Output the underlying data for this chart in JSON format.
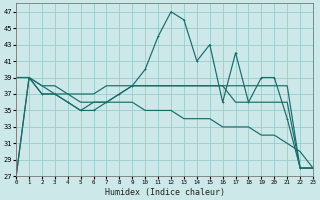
{
  "xlabel": "Humidex (Indice chaleur)",
  "background_color": "#cce8e8",
  "grid_color": "#99cccc",
  "line_color": "#1a6b6b",
  "x_values": [
    0,
    1,
    2,
    3,
    4,
    5,
    6,
    7,
    8,
    9,
    10,
    11,
    12,
    13,
    14,
    15,
    16,
    17,
    18,
    19,
    20,
    21,
    22,
    23
  ],
  "series_main": [
    27,
    39,
    37,
    37,
    36,
    35,
    35,
    36,
    37,
    38,
    40,
    44,
    47,
    46,
    41,
    43,
    36,
    42,
    36,
    39,
    39,
    34,
    28,
    28
  ],
  "series_flat": [
    39,
    39,
    38,
    38,
    37,
    37,
    37,
    38,
    38,
    38,
    38,
    38,
    38,
    38,
    38,
    38,
    38,
    38,
    38,
    38,
    38,
    38,
    28,
    28
  ],
  "series_diag": [
    39,
    39,
    38,
    37,
    37,
    36,
    36,
    36,
    36,
    36,
    35,
    35,
    35,
    34,
    34,
    34,
    33,
    33,
    33,
    32,
    32,
    31,
    30,
    28
  ],
  "series_mid": [
    27,
    39,
    37,
    37,
    36,
    35,
    36,
    36,
    37,
    38,
    38,
    38,
    38,
    38,
    38,
    38,
    38,
    36,
    36,
    36,
    36,
    36,
    28,
    28
  ],
  "ylim": [
    27,
    48
  ],
  "yticks": [
    27,
    29,
    31,
    33,
    35,
    37,
    39,
    41,
    43,
    45,
    47
  ],
  "xlim": [
    0,
    23
  ],
  "xticks": [
    0,
    1,
    2,
    3,
    4,
    5,
    6,
    7,
    8,
    9,
    10,
    11,
    12,
    13,
    14,
    15,
    16,
    17,
    18,
    19,
    20,
    21,
    22,
    23
  ]
}
